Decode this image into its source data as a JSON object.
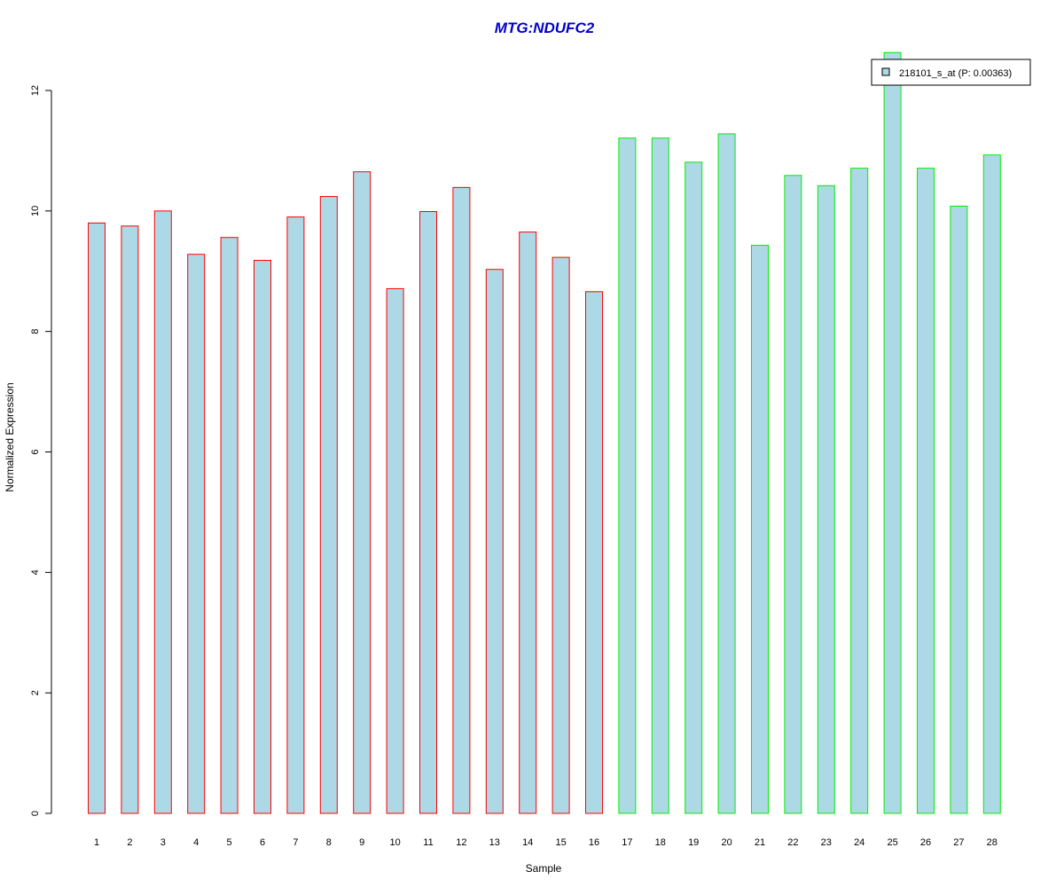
{
  "chart_data": {
    "type": "bar",
    "title": "MTG:NDUFC2",
    "xlabel": "Sample",
    "ylabel": "Normalized Expression",
    "ylim": [
      0,
      12
    ],
    "yticks": [
      0,
      2,
      4,
      6,
      8,
      10,
      12
    ],
    "categories": [
      "1",
      "2",
      "3",
      "4",
      "5",
      "6",
      "7",
      "8",
      "9",
      "10",
      "11",
      "12",
      "13",
      "14",
      "15",
      "16",
      "17",
      "18",
      "19",
      "20",
      "21",
      "22",
      "23",
      "24",
      "25",
      "26",
      "27",
      "28"
    ],
    "values": [
      9.8,
      9.75,
      10.0,
      9.28,
      9.56,
      9.18,
      9.9,
      10.24,
      10.65,
      8.71,
      9.99,
      10.39,
      9.03,
      9.65,
      9.23,
      8.66,
      11.21,
      11.21,
      10.81,
      11.28,
      9.43,
      10.59,
      10.42,
      10.71,
      12.63,
      10.71,
      10.08,
      10.93
    ],
    "group_edge_colors": [
      "#ff0000",
      "#ff0000",
      "#ff0000",
      "#ff0000",
      "#ff0000",
      "#ff0000",
      "#ff0000",
      "#ff0000",
      "#ff0000",
      "#ff0000",
      "#ff0000",
      "#ff0000",
      "#ff0000",
      "#ff0000",
      "#ff0000",
      "#ff0000",
      "#00ee00",
      "#00ee00",
      "#00ee00",
      "#00ee00",
      "#00ee00",
      "#00ee00",
      "#00ee00",
      "#00ee00",
      "#00ee00",
      "#00ee00",
      "#00ee00",
      "#00ee00"
    ],
    "bar_fill": "#add8e6",
    "title_color": "#0000cd",
    "legend": {
      "placement": "top-right",
      "entries": [
        {
          "label": "218101_s_at (P: 0.00363)",
          "color": "#add8e6"
        }
      ]
    },
    "grid": false
  }
}
